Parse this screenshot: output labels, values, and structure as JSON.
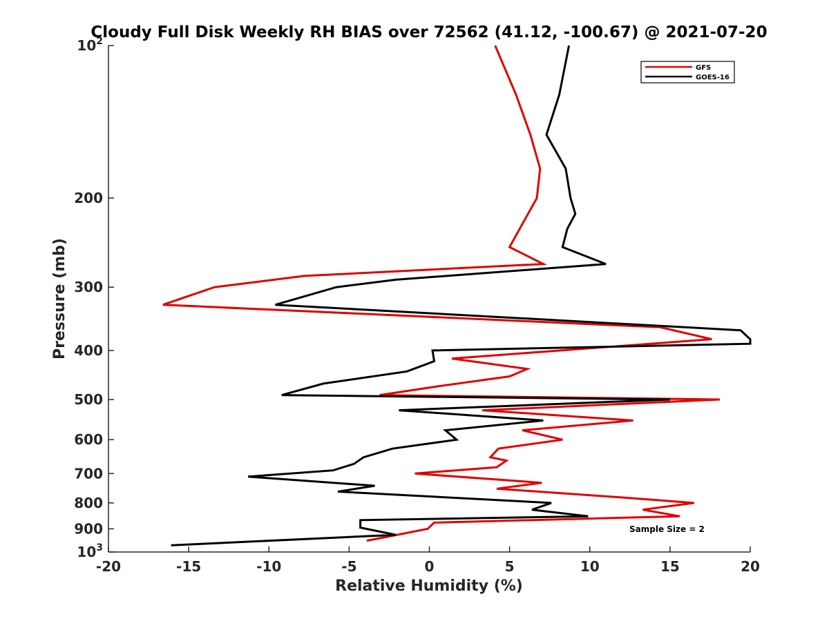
{
  "chart_data": {
    "type": "line",
    "title": "Cloudy Full Disk Weekly RH BIAS over 72562 (41.12, -100.67) @ 2021-07-20",
    "xlabel": "Relative Humidity (%)",
    "ylabel": "Pressure (mb)",
    "xlim": [
      -20,
      20
    ],
    "ylim": [
      100,
      1000
    ],
    "y_scale": "log",
    "y_reversed": true,
    "x_ticks": [
      "-20",
      "-15",
      "-10",
      "-5",
      "0",
      "5",
      "10",
      "15",
      "20"
    ],
    "y_ticks": [
      {
        "value": 100,
        "base": "10",
        "exp": "2"
      },
      {
        "value": 200,
        "label": "200"
      },
      {
        "value": 300,
        "label": "300"
      },
      {
        "value": 400,
        "label": "400"
      },
      {
        "value": 500,
        "label": "500"
      },
      {
        "value": 600,
        "label": "600"
      },
      {
        "value": 700,
        "label": "700"
      },
      {
        "value": 800,
        "label": "800"
      },
      {
        "value": 900,
        "label": "900"
      },
      {
        "value": 1000,
        "base": "10",
        "exp": "3"
      }
    ],
    "legend_position": "top-right",
    "annotation": "Sample Size = 2",
    "series": [
      {
        "name": "GFS",
        "color": "#e00000",
        "points": [
          [
            4.1,
            100
          ],
          [
            5.4,
            125
          ],
          [
            6.3,
            150
          ],
          [
            6.9,
            175
          ],
          [
            6.7,
            200
          ],
          [
            5.8,
            225
          ],
          [
            5.0,
            250
          ],
          [
            7.1,
            270
          ],
          [
            -7.8,
            285
          ],
          [
            -13.4,
            300
          ],
          [
            -16.6,
            325
          ],
          [
            14.4,
            360
          ],
          [
            17.6,
            380
          ],
          [
            1.4,
            415
          ],
          [
            6.1,
            435
          ],
          [
            5.0,
            450
          ],
          [
            0.7,
            470
          ],
          [
            -3.1,
            490
          ],
          [
            18.1,
            500
          ],
          [
            3.3,
            525
          ],
          [
            12.7,
            550
          ],
          [
            5.8,
            575
          ],
          [
            8.3,
            600
          ],
          [
            4.3,
            625
          ],
          [
            3.8,
            650
          ],
          [
            4.8,
            660
          ],
          [
            4.2,
            680
          ],
          [
            -0.9,
            700
          ],
          [
            7.0,
            730
          ],
          [
            4.2,
            750
          ],
          [
            11.9,
            780
          ],
          [
            16.5,
            800
          ],
          [
            13.3,
            825
          ],
          [
            15.6,
            850
          ],
          [
            0.3,
            875
          ],
          [
            -0.1,
            900
          ],
          [
            -2.0,
            925
          ],
          [
            -3.9,
            950
          ]
        ]
      },
      {
        "name": "GOES-16",
        "color": "#000000",
        "points": [
          [
            8.7,
            100
          ],
          [
            8.1,
            125
          ],
          [
            7.3,
            150
          ],
          [
            8.5,
            175
          ],
          [
            8.8,
            200
          ],
          [
            9.1,
            215
          ],
          [
            8.6,
            230
          ],
          [
            8.3,
            250
          ],
          [
            11.0,
            270
          ],
          [
            -2.1,
            290
          ],
          [
            -5.8,
            300
          ],
          [
            -9.6,
            325
          ],
          [
            19.4,
            365
          ],
          [
            20.0,
            380
          ],
          [
            20.0,
            388
          ],
          [
            0.2,
            400
          ],
          [
            0.3,
            420
          ],
          [
            -1.4,
            440
          ],
          [
            -6.6,
            465
          ],
          [
            -9.2,
            490
          ],
          [
            15.0,
            500
          ],
          [
            -1.9,
            525
          ],
          [
            7.1,
            550
          ],
          [
            1.0,
            575
          ],
          [
            1.7,
            600
          ],
          [
            -2.3,
            625
          ],
          [
            -4.1,
            650
          ],
          [
            -4.7,
            670
          ],
          [
            -6.0,
            690
          ],
          [
            -11.3,
            710
          ],
          [
            -3.4,
            740
          ],
          [
            -5.7,
            760
          ],
          [
            7.6,
            800
          ],
          [
            6.4,
            825
          ],
          [
            9.9,
            850
          ],
          [
            -4.3,
            865
          ],
          [
            -4.3,
            895
          ],
          [
            -2.1,
            925
          ],
          [
            -16.1,
            970
          ]
        ]
      }
    ]
  }
}
